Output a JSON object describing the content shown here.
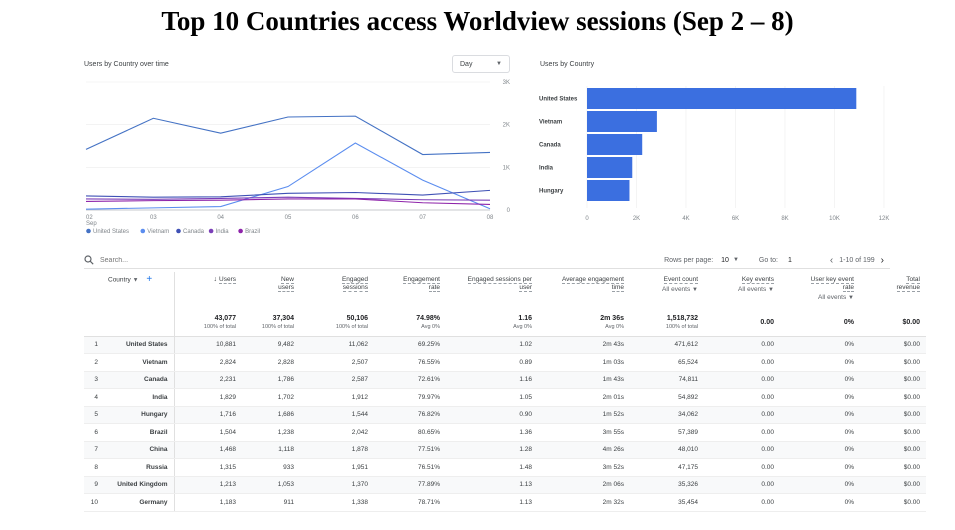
{
  "page": {
    "title": "Top 10 Countries access Worldview sessions (Sep 2 – 8)"
  },
  "line_chart": {
    "title": "Users by Country over time",
    "granularity_label": "Day",
    "y_ticks": [
      "3K",
      "2K",
      "1K",
      "0"
    ],
    "x_ticks": [
      "02",
      "03",
      "04",
      "05",
      "06",
      "07",
      "08"
    ],
    "x_month": "Sep",
    "legend": [
      {
        "name": "United States",
        "color": "#4472c4"
      },
      {
        "name": "Vietnam",
        "color": "#5b8def"
      },
      {
        "name": "Canada",
        "color": "#3f51b5"
      },
      {
        "name": "India",
        "color": "#7b3fb8"
      },
      {
        "name": "Brazil",
        "color": "#8e24aa"
      }
    ]
  },
  "chart_data": [
    {
      "type": "line",
      "x": [
        "02",
        "03",
        "04",
        "05",
        "06",
        "07",
        "08"
      ],
      "ylim": [
        0,
        3000
      ],
      "series": [
        {
          "name": "United States",
          "color": "#4472c4",
          "values": [
            1420,
            2150,
            1800,
            2180,
            2200,
            1300,
            1350
          ]
        },
        {
          "name": "Vietnam",
          "color": "#5b8def",
          "values": [
            20,
            50,
            80,
            550,
            1570,
            700,
            30
          ]
        },
        {
          "name": "Canada",
          "color": "#3f51b5",
          "values": [
            330,
            300,
            310,
            390,
            410,
            350,
            460
          ]
        },
        {
          "name": "India",
          "color": "#7b3fb8",
          "values": [
            260,
            250,
            270,
            300,
            270,
            240,
            230
          ]
        },
        {
          "name": "Brazil",
          "color": "#8e24aa",
          "values": [
            200,
            220,
            230,
            260,
            260,
            170,
            130
          ]
        }
      ]
    },
    {
      "type": "bar",
      "orientation": "horizontal",
      "title": "Users by Country",
      "categories": [
        "United States",
        "Vietnam",
        "Canada",
        "India",
        "Hungary"
      ],
      "values": [
        10881,
        2824,
        2231,
        1829,
        1716
      ],
      "xlim": [
        0,
        12000
      ],
      "x_ticks": [
        "0",
        "2K",
        "4K",
        "6K",
        "8K",
        "10K",
        "12K"
      ],
      "color": "#3b6fe0"
    }
  ],
  "toolbar": {
    "search_placeholder": "Search...",
    "rows_per_page_label": "Rows per page:",
    "rows_per_page_value": "10",
    "goto_label": "Go to:",
    "goto_value": "1",
    "range_text": "1-10 of 199"
  },
  "table": {
    "headers": {
      "country": "Country",
      "users": "Users",
      "new_users": [
        "New",
        "users"
      ],
      "engaged_sessions": [
        "Engaged",
        "sessions"
      ],
      "engagement_rate": [
        "Engagement",
        "rate"
      ],
      "eng_per_user": [
        "Engaged sessions per",
        "user"
      ],
      "avg_engagement": [
        "Average engagement",
        "time"
      ],
      "event_count": "Event count",
      "event_count_sub": "All events",
      "key_events": "Key events",
      "key_events_sub": "All events",
      "user_key_event_rate": [
        "User key event",
        "rate"
      ],
      "user_key_event_rate_sub": "All events",
      "total_revenue": [
        "Total",
        "revenue"
      ]
    },
    "totals": {
      "users": "43,077",
      "users_sub": "100% of total",
      "new_users": "37,304",
      "new_users_sub": "100% of total",
      "engaged_sessions": "50,106",
      "engaged_sessions_sub": "100% of total",
      "engagement_rate": "74.98%",
      "engagement_rate_sub": "Avg 0%",
      "eng_per_user": "1.16",
      "eng_per_user_sub": "Avg 0%",
      "avg_engagement": "2m 36s",
      "avg_engagement_sub": "Avg 0%",
      "event_count": "1,518,732",
      "event_count_sub": "100% of total",
      "key_events": "0.00",
      "user_key_event_rate": "0%",
      "total_revenue": "$0.00"
    },
    "rows": [
      {
        "rank": "1",
        "country": "United States",
        "users": "10,881",
        "new_users": "9,482",
        "engaged": "11,062",
        "rate": "69.25%",
        "per_user": "1.02",
        "avg_time": "2m 43s",
        "events": "471,612",
        "key_events": "0.00",
        "ukr": "0%",
        "revenue": "$0.00"
      },
      {
        "rank": "2",
        "country": "Vietnam",
        "users": "2,824",
        "new_users": "2,828",
        "engaged": "2,507",
        "rate": "76.55%",
        "per_user": "0.89",
        "avg_time": "1m 03s",
        "events": "65,524",
        "key_events": "0.00",
        "ukr": "0%",
        "revenue": "$0.00"
      },
      {
        "rank": "3",
        "country": "Canada",
        "users": "2,231",
        "new_users": "1,786",
        "engaged": "2,587",
        "rate": "72.61%",
        "per_user": "1.16",
        "avg_time": "1m 43s",
        "events": "74,811",
        "key_events": "0.00",
        "ukr": "0%",
        "revenue": "$0.00"
      },
      {
        "rank": "4",
        "country": "India",
        "users": "1,829",
        "new_users": "1,702",
        "engaged": "1,912",
        "rate": "79.97%",
        "per_user": "1.05",
        "avg_time": "2m 01s",
        "events": "54,892",
        "key_events": "0.00",
        "ukr": "0%",
        "revenue": "$0.00"
      },
      {
        "rank": "5",
        "country": "Hungary",
        "users": "1,716",
        "new_users": "1,686",
        "engaged": "1,544",
        "rate": "76.82%",
        "per_user": "0.90",
        "avg_time": "1m 52s",
        "events": "34,062",
        "key_events": "0.00",
        "ukr": "0%",
        "revenue": "$0.00"
      },
      {
        "rank": "6",
        "country": "Brazil",
        "users": "1,504",
        "new_users": "1,238",
        "engaged": "2,042",
        "rate": "80.65%",
        "per_user": "1.36",
        "avg_time": "3m 55s",
        "events": "57,389",
        "key_events": "0.00",
        "ukr": "0%",
        "revenue": "$0.00"
      },
      {
        "rank": "7",
        "country": "China",
        "users": "1,468",
        "new_users": "1,118",
        "engaged": "1,878",
        "rate": "77.51%",
        "per_user": "1.28",
        "avg_time": "4m 26s",
        "events": "48,010",
        "key_events": "0.00",
        "ukr": "0%",
        "revenue": "$0.00"
      },
      {
        "rank": "8",
        "country": "Russia",
        "users": "1,315",
        "new_users": "933",
        "engaged": "1,951",
        "rate": "76.51%",
        "per_user": "1.48",
        "avg_time": "3m 52s",
        "events": "47,175",
        "key_events": "0.00",
        "ukr": "0%",
        "revenue": "$0.00"
      },
      {
        "rank": "9",
        "country": "United Kingdom",
        "users": "1,213",
        "new_users": "1,053",
        "engaged": "1,370",
        "rate": "77.89%",
        "per_user": "1.13",
        "avg_time": "2m 06s",
        "events": "35,326",
        "key_events": "0.00",
        "ukr": "0%",
        "revenue": "$0.00"
      },
      {
        "rank": "10",
        "country": "Germany",
        "users": "1,183",
        "new_users": "911",
        "engaged": "1,338",
        "rate": "78.71%",
        "per_user": "1.13",
        "avg_time": "2m 32s",
        "events": "35,454",
        "key_events": "0.00",
        "ukr": "0%",
        "revenue": "$0.00"
      }
    ]
  },
  "icons": {
    "search": "search-icon",
    "add": "add-icon",
    "sort": "sort-down-icon",
    "prev": "chevron-left-icon",
    "next": "chevron-right-icon",
    "dropdown": "caret-down-icon"
  }
}
